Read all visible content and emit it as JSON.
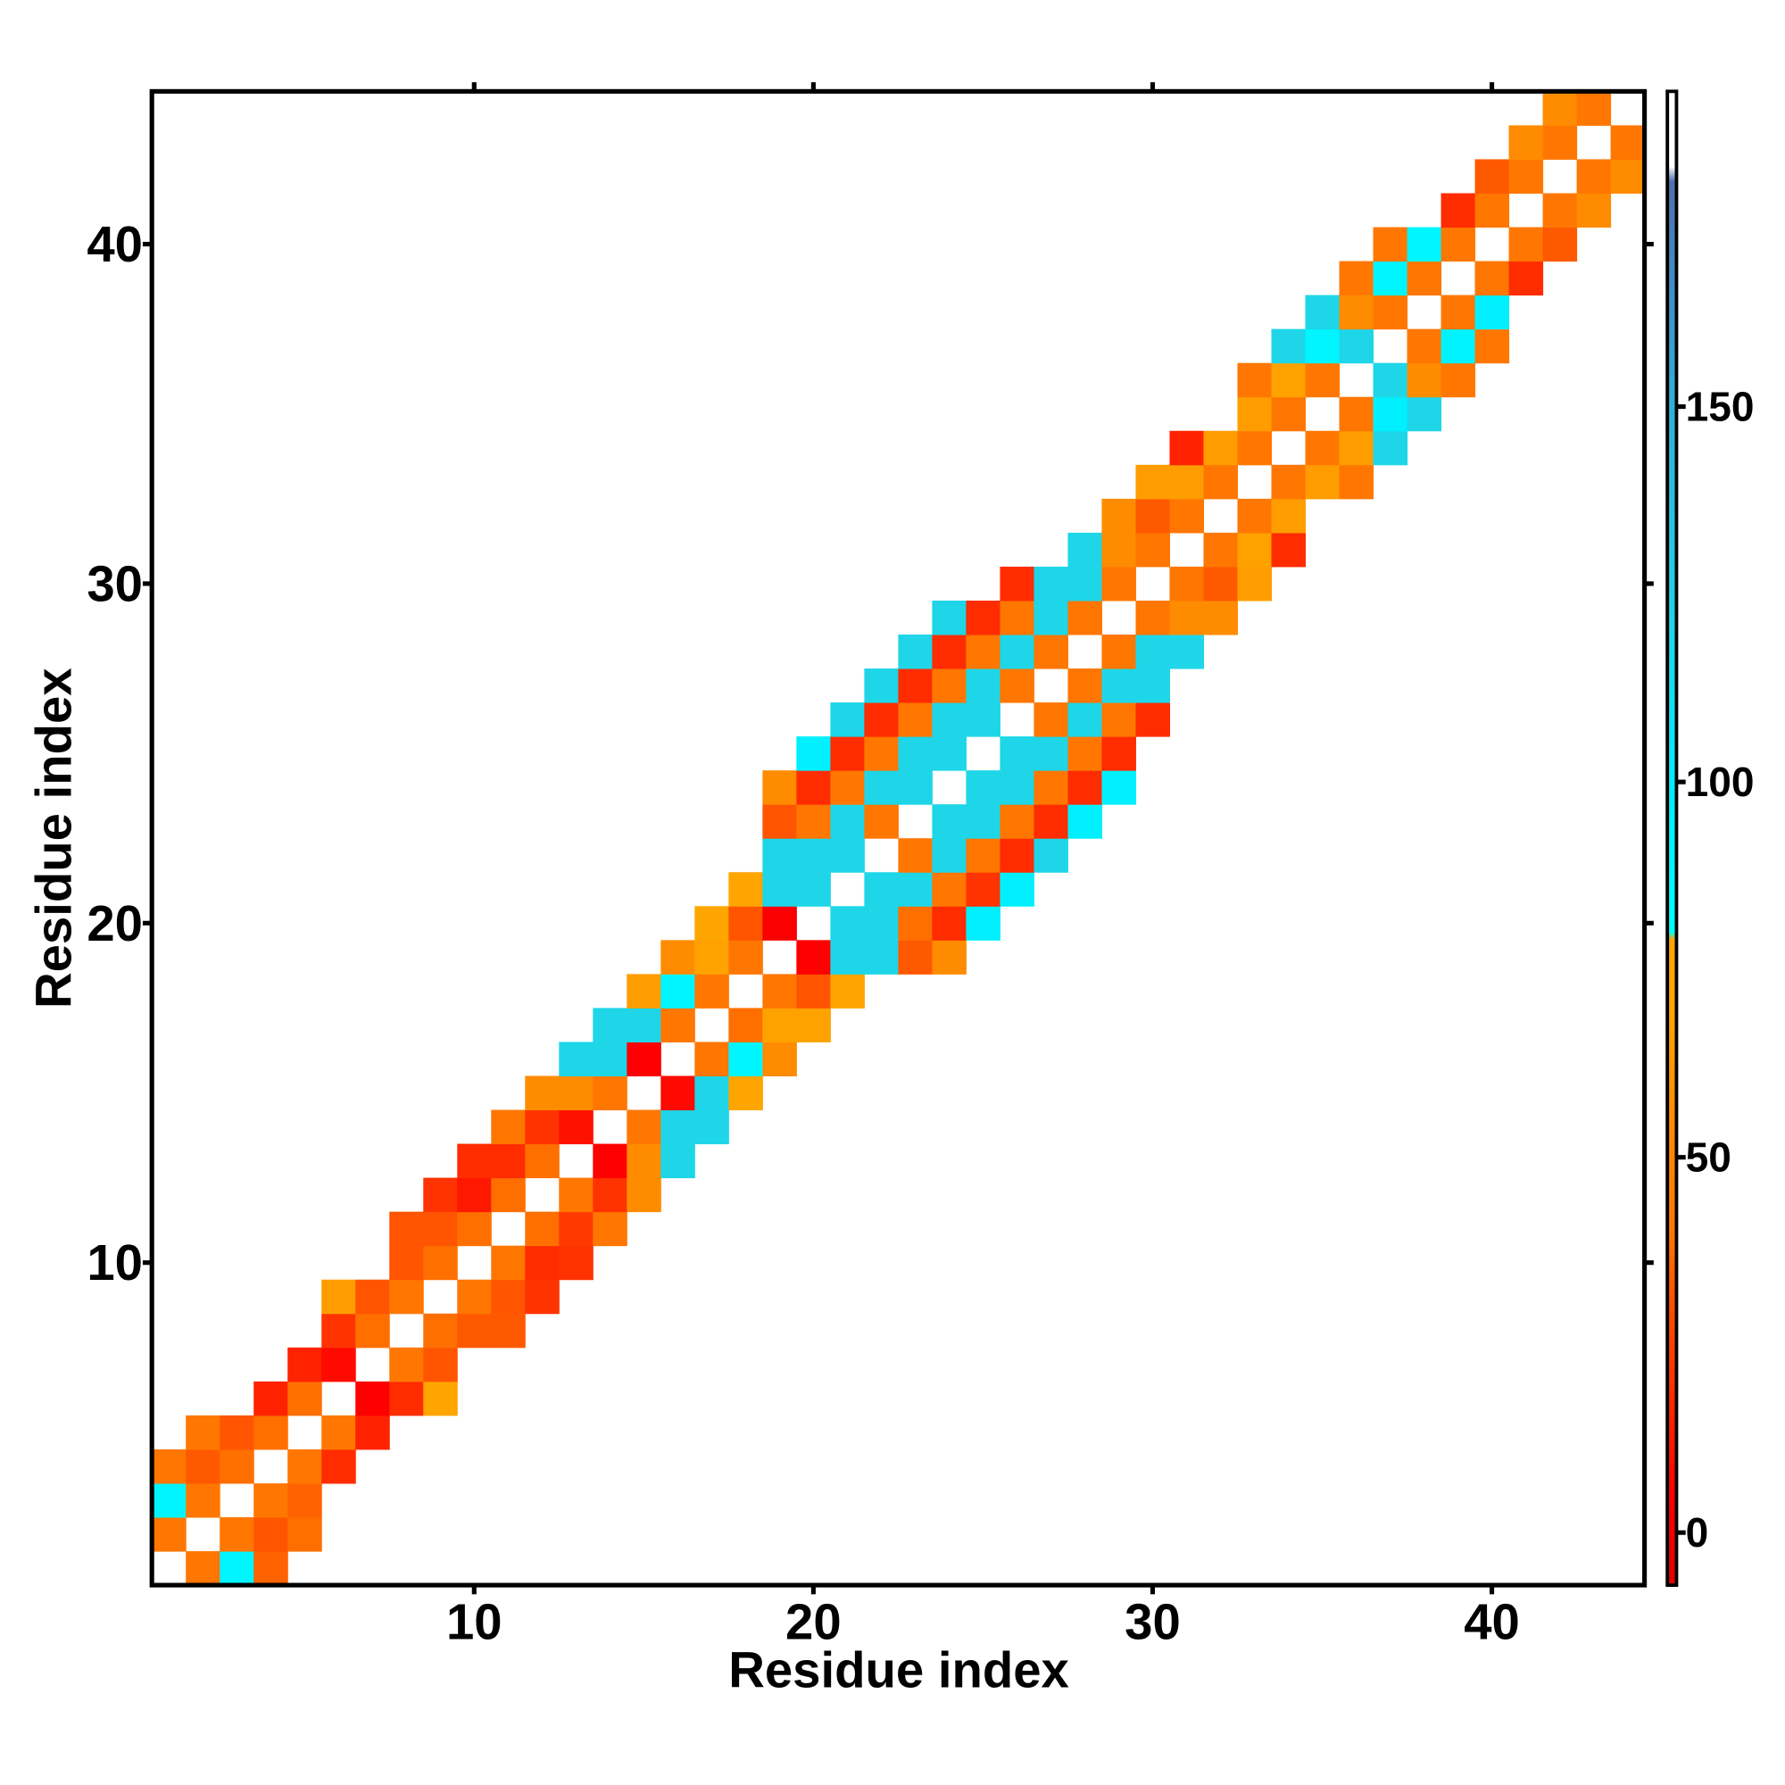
{
  "chart_data": {
    "type": "heatmap",
    "xlabel": "Residue index",
    "ylabel": "Residue index",
    "xlim": [
      0.5,
      44.5
    ],
    "ylim": [
      0.5,
      44.5
    ],
    "xticks": [
      10,
      20,
      30,
      40
    ],
    "yticks": [
      10,
      20,
      30,
      40
    ],
    "clim": [
      -7,
      192
    ],
    "cticks": [
      0,
      50,
      100,
      150
    ],
    "colorscale": [
      [
        -7,
        "#e00000"
      ],
      [
        5,
        "#ff0000"
      ],
      [
        20,
        "#ff3300"
      ],
      [
        32,
        "#ff5500"
      ],
      [
        40,
        "#ff7700"
      ],
      [
        55,
        "#ff8c00"
      ],
      [
        70,
        "#ffa500"
      ],
      [
        79,
        "#ffa500"
      ],
      [
        80,
        "#00ffff"
      ],
      [
        95,
        "#00f0ff"
      ],
      [
        120,
        "#1ed6e8"
      ],
      [
        150,
        "#30b0d8"
      ],
      [
        180,
        "#5070b0"
      ],
      [
        182,
        "#ffffff"
      ],
      [
        192,
        "#ffffff"
      ]
    ],
    "x": [
      2,
      3,
      4,
      1,
      3,
      4,
      5,
      1,
      2,
      4,
      5,
      1,
      2,
      3,
      5,
      6,
      2,
      3,
      4,
      6,
      7,
      4,
      5,
      7,
      8,
      9,
      5,
      6,
      8,
      9,
      6,
      7,
      9,
      10,
      11,
      6,
      7,
      8,
      10,
      11,
      12,
      8,
      9,
      11,
      12,
      13,
      8,
      9,
      10,
      12,
      13,
      14,
      9,
      10,
      11,
      13,
      14,
      15,
      10,
      11,
      12,
      14,
      15,
      16,
      11,
      12,
      13,
      15,
      16,
      17,
      12,
      13,
      14,
      16,
      17,
      18,
      13,
      14,
      15,
      17,
      18,
      19,
      14,
      15,
      16,
      18,
      19,
      20,
      15,
      16,
      17,
      19,
      20,
      21,
      16,
      17,
      18,
      20,
      21,
      22,
      23,
      24,
      17,
      18,
      19,
      21,
      22,
      23,
      24,
      25,
      18,
      19,
      20,
      22,
      23,
      24,
      25,
      26,
      19,
      20,
      21,
      23,
      24,
      25,
      26,
      27,
      19,
      20,
      21,
      22,
      24,
      25,
      26,
      27,
      28,
      19,
      20,
      21,
      22,
      23,
      25,
      26,
      27,
      28,
      29,
      20,
      21,
      22,
      23,
      24,
      26,
      27,
      28,
      29,
      21,
      22,
      23,
      24,
      25,
      27,
      28,
      29,
      30,
      22,
      23,
      24,
      25,
      26,
      28,
      29,
      30,
      23,
      24,
      25,
      26,
      27,
      29,
      30,
      31,
      24,
      25,
      26,
      27,
      28,
      30,
      31,
      32,
      26,
      27,
      28,
      29,
      31,
      32,
      33,
      28,
      29,
      30,
      32,
      33,
      34,
      29,
      30,
      31,
      33,
      34,
      30,
      31,
      32,
      34,
      35,
      36,
      31,
      32,
      33,
      35,
      36,
      37,
      33,
      34,
      36,
      37,
      38,
      33,
      34,
      35,
      37,
      38,
      39,
      34,
      35,
      36,
      38,
      39,
      40,
      35,
      36,
      37,
      39,
      40,
      36,
      37,
      38,
      40,
      41,
      37,
      38,
      39,
      41,
      42,
      39,
      40,
      42,
      43,
      40,
      41,
      43,
      44,
      41,
      42,
      44,
      42,
      43
    ],
    "y": [
      1,
      1,
      1,
      2,
      2,
      2,
      2,
      3,
      3,
      3,
      3,
      4,
      4,
      4,
      4,
      4,
      5,
      5,
      5,
      5,
      5,
      6,
      6,
      6,
      6,
      6,
      7,
      7,
      7,
      7,
      8,
      8,
      8,
      8,
      8,
      9,
      9,
      9,
      9,
      9,
      9,
      10,
      10,
      10,
      10,
      10,
      11,
      11,
      11,
      11,
      11,
      11,
      12,
      12,
      12,
      12,
      12,
      12,
      13,
      13,
      13,
      13,
      13,
      13,
      14,
      14,
      14,
      14,
      14,
      14,
      15,
      15,
      15,
      15,
      15,
      15,
      16,
      16,
      16,
      16,
      16,
      16,
      17,
      17,
      17,
      17,
      17,
      17,
      18,
      18,
      18,
      18,
      18,
      18,
      19,
      19,
      19,
      19,
      19,
      19,
      19,
      19,
      20,
      20,
      20,
      20,
      20,
      20,
      20,
      20,
      21,
      21,
      21,
      21,
      21,
      21,
      21,
      21,
      22,
      22,
      22,
      22,
      22,
      22,
      22,
      22,
      23,
      23,
      23,
      23,
      23,
      23,
      23,
      23,
      23,
      24,
      24,
      24,
      24,
      24,
      24,
      24,
      24,
      24,
      24,
      25,
      25,
      25,
      25,
      25,
      25,
      25,
      25,
      25,
      26,
      26,
      26,
      26,
      26,
      26,
      26,
      26,
      26,
      27,
      27,
      27,
      27,
      27,
      27,
      27,
      27,
      28,
      28,
      28,
      28,
      28,
      28,
      28,
      28,
      29,
      29,
      29,
      29,
      29,
      29,
      29,
      29,
      30,
      30,
      30,
      30,
      30,
      30,
      30,
      31,
      31,
      31,
      31,
      31,
      31,
      32,
      32,
      32,
      32,
      32,
      33,
      33,
      33,
      33,
      33,
      33,
      34,
      34,
      34,
      34,
      34,
      34,
      35,
      35,
      35,
      35,
      35,
      36,
      36,
      36,
      36,
      36,
      36,
      37,
      37,
      37,
      37,
      37,
      37,
      38,
      38,
      38,
      38,
      38,
      39,
      39,
      39,
      39,
      39,
      40,
      40,
      40,
      40,
      40,
      41,
      41,
      41,
      41,
      42,
      42,
      42,
      42,
      43,
      43,
      43,
      44,
      44
    ],
    "values": [
      40,
      90,
      35,
      40,
      40,
      32,
      38,
      90,
      40,
      40,
      35,
      40,
      33,
      38,
      40,
      18,
      40,
      32,
      38,
      40,
      15,
      15,
      38,
      5,
      18,
      70,
      15,
      8,
      40,
      32,
      20,
      38,
      38,
      33,
      33,
      65,
      32,
      40,
      40,
      32,
      20,
      32,
      38,
      40,
      18,
      20,
      32,
      32,
      38,
      38,
      22,
      40,
      20,
      12,
      38,
      40,
      20,
      55,
      18,
      18,
      38,
      5,
      55,
      120,
      40,
      20,
      10,
      40,
      120,
      120,
      55,
      55,
      40,
      8,
      120,
      70,
      120,
      120,
      5,
      40,
      90,
      55,
      120,
      120,
      40,
      38,
      68,
      68,
      65,
      90,
      40,
      40,
      32,
      70,
      55,
      68,
      40,
      5,
      120,
      120,
      33,
      55,
      70,
      32,
      3,
      120,
      120,
      38,
      18,
      95,
      70,
      120,
      120,
      120,
      120,
      40,
      20,
      95,
      120,
      120,
      120,
      40,
      120,
      40,
      18,
      120,
      32,
      40,
      120,
      40,
      120,
      120,
      40,
      18,
      95,
      55,
      18,
      40,
      120,
      120,
      120,
      120,
      40,
      18,
      95,
      95,
      18,
      40,
      120,
      120,
      120,
      120,
      40,
      18,
      120,
      18,
      40,
      120,
      120,
      40,
      120,
      40,
      18,
      120,
      18,
      40,
      120,
      40,
      40,
      120,
      120,
      120,
      18,
      40,
      120,
      40,
      40,
      120,
      120,
      120,
      18,
      40,
      120,
      40,
      40,
      55,
      55,
      18,
      120,
      120,
      40,
      40,
      33,
      65,
      120,
      55,
      40,
      40,
      68,
      18,
      55,
      33,
      40,
      40,
      65,
      65,
      65,
      40,
      40,
      65,
      40,
      15,
      65,
      40,
      40,
      65,
      120,
      65,
      40,
      40,
      95,
      120,
      40,
      68,
      40,
      120,
      55,
      40,
      120,
      90,
      120,
      40,
      92,
      40,
      120,
      55,
      40,
      40,
      95,
      40,
      90,
      40,
      40,
      18,
      40,
      90,
      40,
      40,
      33,
      18,
      40,
      40,
      55,
      33,
      40,
      40,
      55,
      55,
      40,
      40,
      55,
      40
    ]
  }
}
